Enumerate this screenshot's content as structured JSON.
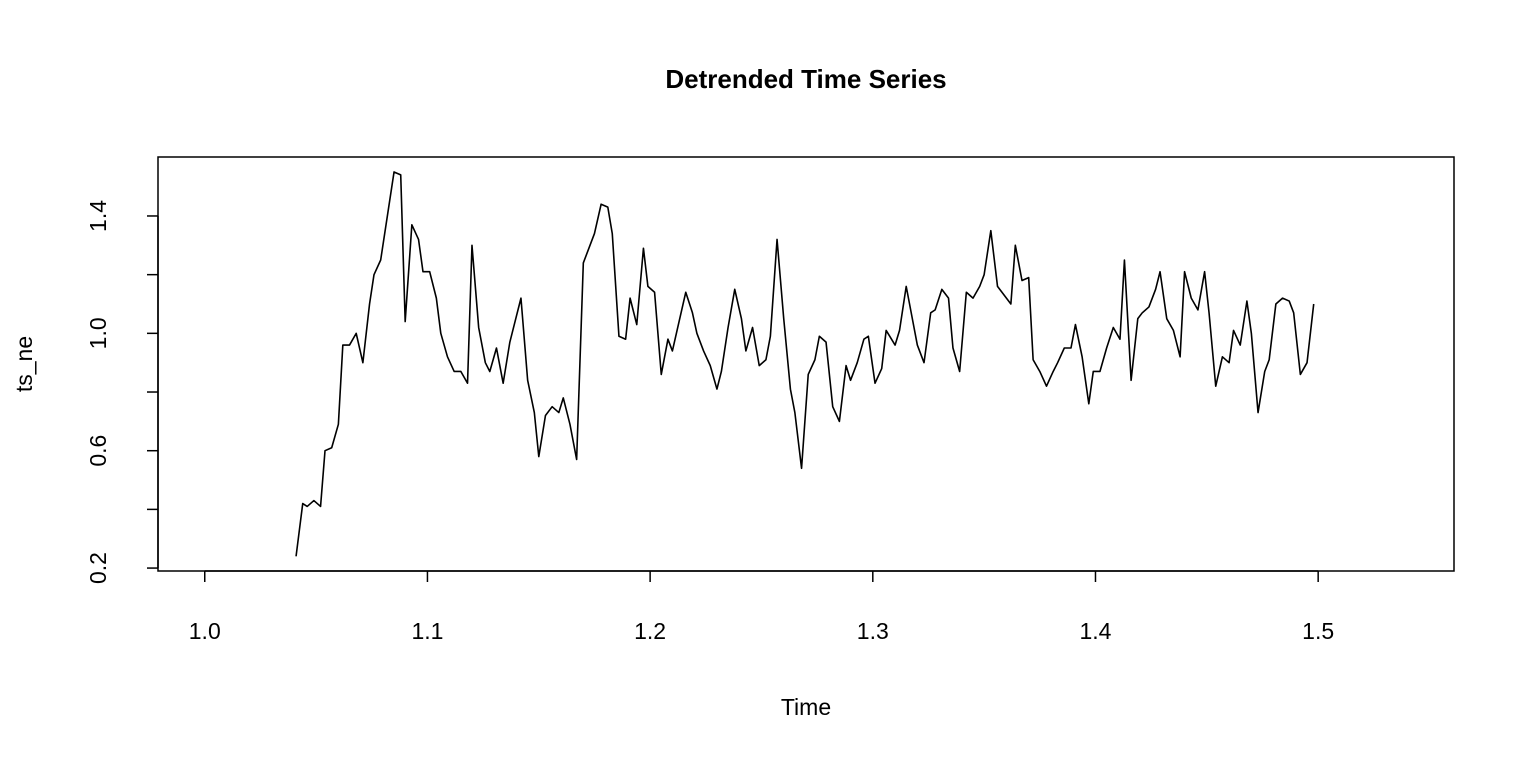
{
  "chart_data": {
    "type": "line",
    "title": "Detrended Time Series",
    "x_label": "Time",
    "y_label": "ts_ne",
    "color": "#000000",
    "xlim": [
      0.979,
      1.561
    ],
    "ylim": [
      0.19,
      1.601
    ],
    "xticks": [
      {
        "value": 1,
        "label": "1.0"
      },
      1.1,
      1.2,
      1.3,
      1.4,
      1.5
    ],
    "yticks": [
      0.2,
      {
        "value": 0.4,
        "label": null
      },
      0.6,
      {
        "value": 0.8,
        "label": null
      },
      {
        "value": 1,
        "label": "1.0"
      },
      {
        "value": 1.2,
        "label": null
      },
      1.4
    ],
    "x": [
      1.041,
      1.044,
      1.046,
      1.049,
      1.052,
      1.054,
      1.057,
      1.06,
      1.062,
      1.065,
      1.068,
      1.071,
      1.074,
      1.076,
      1.079,
      1.082,
      1.085,
      1.088,
      1.09,
      1.093,
      1.096,
      1.098,
      1.101,
      1.104,
      1.106,
      1.109,
      1.112,
      1.115,
      1.118,
      1.12,
      1.123,
      1.126,
      1.128,
      1.131,
      1.134,
      1.137,
      1.14,
      1.142,
      1.145,
      1.148,
      1.15,
      1.153,
      1.156,
      1.159,
      1.161,
      1.164,
      1.167,
      1.17,
      1.173,
      1.175,
      1.178,
      1.181,
      1.183,
      1.186,
      1.189,
      1.191,
      1.194,
      1.197,
      1.199,
      1.202,
      1.205,
      1.208,
      1.21,
      1.213,
      1.216,
      1.219,
      1.221,
      1.224,
      1.227,
      1.23,
      1.232,
      1.235,
      1.238,
      1.241,
      1.243,
      1.246,
      1.249,
      1.252,
      1.254,
      1.257,
      1.26,
      1.263,
      1.265,
      1.268,
      1.271,
      1.274,
      1.276,
      1.279,
      1.282,
      1.285,
      1.288,
      1.29,
      1.293,
      1.296,
      1.298,
      1.301,
      1.304,
      1.306,
      1.31,
      1.312,
      1.315,
      1.318,
      1.32,
      1.323,
      1.326,
      1.328,
      1.331,
      1.334,
      1.336,
      1.339,
      1.342,
      1.345,
      1.348,
      1.35,
      1.353,
      1.356,
      1.358,
      1.362,
      1.364,
      1.367,
      1.37,
      1.372,
      1.375,
      1.378,
      1.381,
      1.383,
      1.386,
      1.389,
      1.391,
      1.394,
      1.397,
      1.399,
      1.402,
      1.405,
      1.408,
      1.411,
      1.413,
      1.416,
      1.419,
      1.421,
      1.424,
      1.427,
      1.429,
      1.432,
      1.435,
      1.438,
      1.44,
      1.443,
      1.446,
      1.449,
      1.451,
      1.454,
      1.457,
      1.46,
      1.462,
      1.465,
      1.468,
      1.47,
      1.473,
      1.476,
      1.478,
      1.481,
      1.484,
      1.487,
      1.489,
      1.492,
      1.495,
      1.498
    ],
    "values": [
      0.24,
      0.42,
      0.41,
      0.43,
      0.41,
      0.6,
      0.61,
      0.69,
      0.96,
      0.96,
      1.0,
      0.9,
      1.1,
      1.2,
      1.25,
      1.4,
      1.55,
      1.54,
      1.04,
      1.37,
      1.32,
      1.21,
      1.21,
      1.12,
      1.0,
      0.92,
      0.87,
      0.87,
      0.83,
      1.3,
      1.02,
      0.9,
      0.87,
      0.95,
      0.83,
      0.97,
      1.06,
      1.12,
      0.84,
      0.73,
      0.58,
      0.72,
      0.75,
      0.73,
      0.78,
      0.69,
      0.57,
      1.24,
      1.3,
      1.34,
      1.44,
      1.43,
      1.34,
      0.99,
      0.98,
      1.12,
      1.03,
      1.29,
      1.16,
      1.14,
      0.86,
      0.98,
      0.94,
      1.04,
      1.14,
      1.07,
      1.0,
      0.94,
      0.89,
      0.81,
      0.87,
      1.02,
      1.15,
      1.05,
      0.94,
      1.02,
      0.89,
      0.91,
      0.99,
      1.32,
      1.05,
      0.81,
      0.73,
      0.54,
      0.86,
      0.91,
      0.99,
      0.97,
      0.75,
      0.7,
      0.89,
      0.84,
      0.9,
      0.98,
      0.99,
      0.83,
      0.88,
      1.01,
      0.96,
      1.01,
      1.16,
      1.04,
      0.96,
      0.9,
      1.07,
      1.08,
      1.15,
      1.12,
      0.95,
      0.87,
      1.14,
      1.12,
      1.16,
      1.2,
      1.35,
      1.16,
      1.14,
      1.1,
      1.3,
      1.18,
      1.19,
      0.91,
      0.87,
      0.82,
      0.87,
      0.9,
      0.95,
      0.95,
      1.03,
      0.92,
      0.76,
      0.87,
      0.87,
      0.95,
      1.02,
      0.98,
      1.25,
      0.84,
      1.05,
      1.07,
      1.09,
      1.15,
      1.21,
      1.05,
      1.01,
      0.92,
      1.21,
      1.12,
      1.08,
      1.21,
      1.07,
      0.82,
      0.92,
      0.9,
      1.01,
      0.96,
      1.11,
      1.0,
      0.73,
      0.87,
      0.91,
      1.1,
      1.12,
      1.11,
      1.07,
      0.86,
      0.9,
      1.1
    ]
  }
}
